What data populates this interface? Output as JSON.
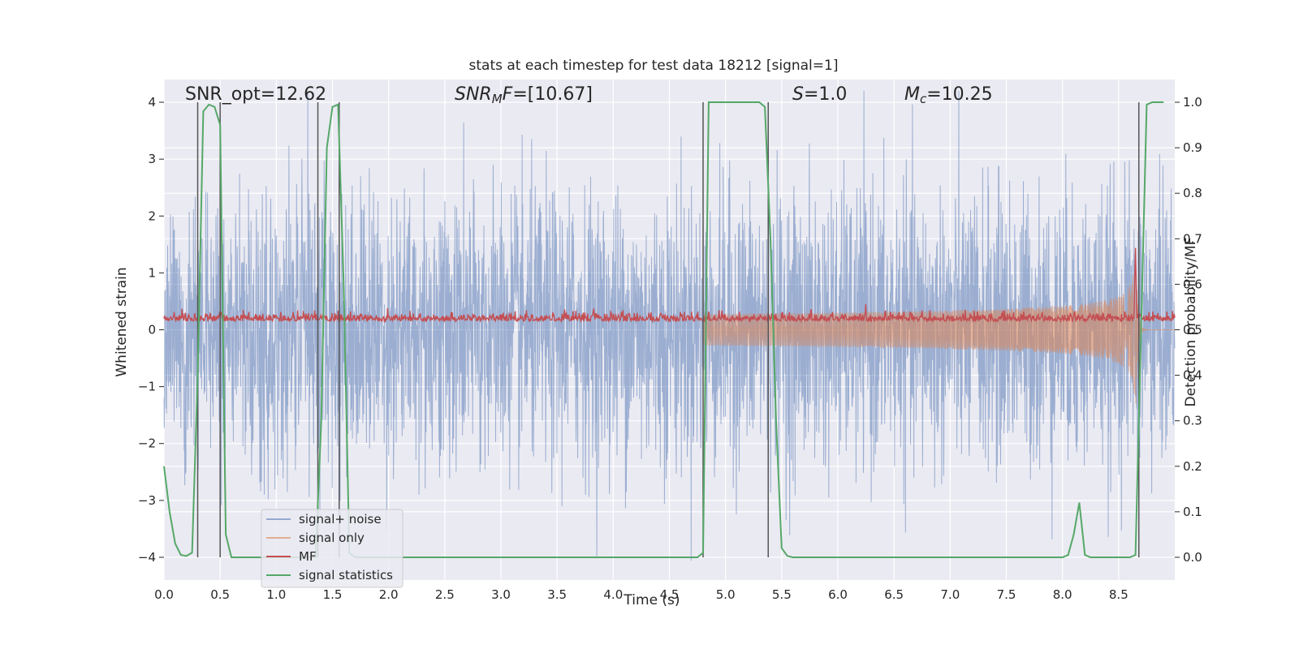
{
  "chart_data": {
    "type": "line",
    "title": "stats at each timestep for test data 18212 [signal=1]",
    "xlabel": "Time (s)",
    "ylabel": "Whitened strain",
    "ylabel_right": "Detection probability/MF",
    "xlim": [
      0.0,
      9.0
    ],
    "ylim": [
      -4.4,
      4.4
    ],
    "ylim_right": [
      -0.05,
      1.05
    ],
    "x_ticks": [
      "0.0",
      "0.5",
      "1.0",
      "1.5",
      "2.0",
      "2.5",
      "3.0",
      "3.5",
      "4.0",
      "4.5",
      "5.0",
      "5.5",
      "6.0",
      "6.5",
      "7.0",
      "7.5",
      "8.0",
      "8.5"
    ],
    "y_ticks": [
      "−4",
      "−3",
      "−2",
      "−1",
      "0",
      "1",
      "2",
      "3",
      "4"
    ],
    "y_right_ticks": [
      "0.0",
      "0.1",
      "0.2",
      "0.3",
      "0.4",
      "0.5",
      "0.6",
      "0.7",
      "0.8",
      "0.9",
      "1.0"
    ],
    "grid": true,
    "legend_position": "lower-left",
    "colors": {
      "background": "#eaeaf2",
      "signal_noise": "#4c72b0",
      "signal_only": "#dd8452",
      "mf": "#c44e52",
      "signal_statistics": "#55a868",
      "vlines": "#555555"
    },
    "annotations": {
      "snr_opt": "SNR_opt=12.62",
      "snr_mf_prefix": "SNR",
      "snr_mf_sub": "M",
      "snr_mf_rest": "F=[10.67]",
      "s_prefix": "S",
      "s_rest": "=1.0",
      "mc_prefix": "M",
      "mc_sub": "c",
      "mc_rest": "=10.25"
    },
    "series": [
      {
        "name": "signal+ noise",
        "description_kind": "noise",
        "amplitude_sigma": 1.2
      },
      {
        "name": "signal only",
        "description_kind": "chirp",
        "merger_time": 8.65,
        "peak_amplitude": 1.6
      },
      {
        "name": "MF",
        "axis": "left",
        "base": 0.15
      },
      {
        "name": "signal statistics",
        "axis": "right",
        "x": [
          0.0,
          0.05,
          0.1,
          0.15,
          0.2,
          0.25,
          0.3,
          0.35,
          0.4,
          0.45,
          0.5,
          0.55,
          0.6,
          0.65,
          0.7,
          0.75,
          0.8,
          0.85,
          0.9,
          0.95,
          1.0,
          1.05,
          1.1,
          1.15,
          1.2,
          1.25,
          1.3,
          1.35,
          1.4,
          1.45,
          1.5,
          1.55,
          1.6,
          1.65,
          1.7,
          1.75,
          1.8,
          4.75,
          4.8,
          4.85,
          4.9,
          4.95,
          5.3,
          5.35,
          5.4,
          5.45,
          5.5,
          5.55,
          5.6,
          5.65,
          8.0,
          8.05,
          8.1,
          8.15,
          8.2,
          8.25,
          8.3,
          8.6,
          8.65,
          8.7,
          8.75,
          8.8,
          8.85,
          8.9
        ],
        "values": [
          0.2,
          0.1,
          0.03,
          0.005,
          0.003,
          0.01,
          0.4,
          0.98,
          0.995,
          0.99,
          0.95,
          0.05,
          0.0,
          0.0,
          0.0,
          0.0,
          0.0,
          0.0,
          0.0,
          0.0,
          0.0,
          0.0,
          0.0,
          0.0,
          0.0,
          0.0,
          0.0,
          0.0,
          0.3,
          0.9,
          0.99,
          0.995,
          0.6,
          0.01,
          0.0,
          0.0,
          0.0,
          0.0,
          0.01,
          1.0,
          1.0,
          1.0,
          1.0,
          0.99,
          0.7,
          0.3,
          0.02,
          0.003,
          0.0,
          0.0,
          0.0,
          0.005,
          0.05,
          0.12,
          0.005,
          0.0,
          0.0,
          0.0,
          0.005,
          0.5,
          0.995,
          1.0,
          1.0,
          1.0
        ]
      }
    ],
    "vlines_x": [
      0.3,
      0.5,
      1.37,
      1.56,
      4.8,
      5.38,
      8.68
    ]
  }
}
